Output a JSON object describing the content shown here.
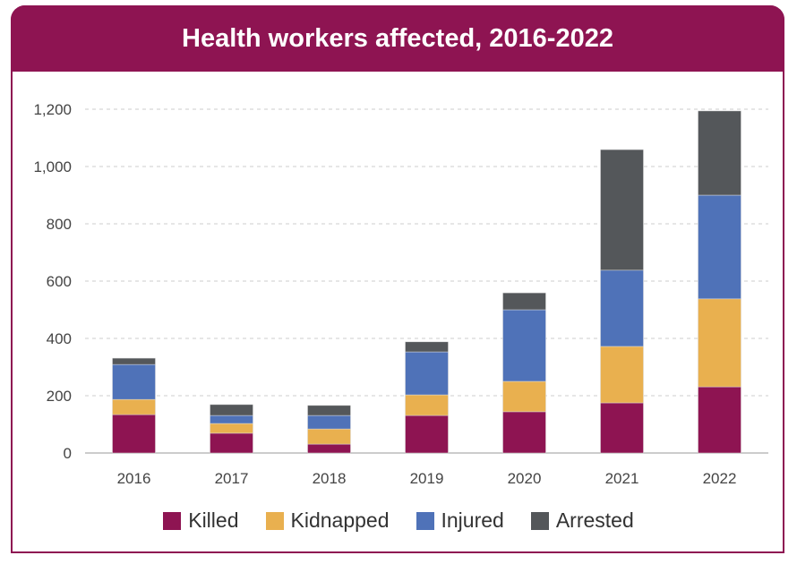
{
  "chart_data": {
    "type": "bar",
    "stacked": true,
    "title": "Health workers affected, 2016-2022",
    "xlabel": "",
    "ylabel": "",
    "ylim": [
      0,
      1200
    ],
    "yticks": [
      0,
      200,
      400,
      600,
      800,
      1000,
      1200
    ],
    "ytick_labels": [
      "0",
      "200",
      "400",
      "600",
      "800",
      "1,000",
      "1,200"
    ],
    "grid": true,
    "legend_placement": "bottom",
    "categories": [
      "2016",
      "2017",
      "2018",
      "2019",
      "2020",
      "2021",
      "2022"
    ],
    "series": [
      {
        "name": "Killed",
        "color": "#8e1452",
        "values": [
          134,
          69,
          31,
          131,
          144,
          175,
          231
        ]
      },
      {
        "name": "Kidnapped",
        "color": "#e9b04f",
        "values": [
          53,
          34,
          53,
          72,
          106,
          197,
          307
        ]
      },
      {
        "name": "Injured",
        "color": "#4f72b8",
        "values": [
          122,
          28,
          47,
          150,
          250,
          266,
          362
        ]
      },
      {
        "name": "Arrested",
        "color": "#54575a",
        "values": [
          22,
          38,
          35,
          35,
          59,
          421,
          294
        ]
      }
    ]
  }
}
